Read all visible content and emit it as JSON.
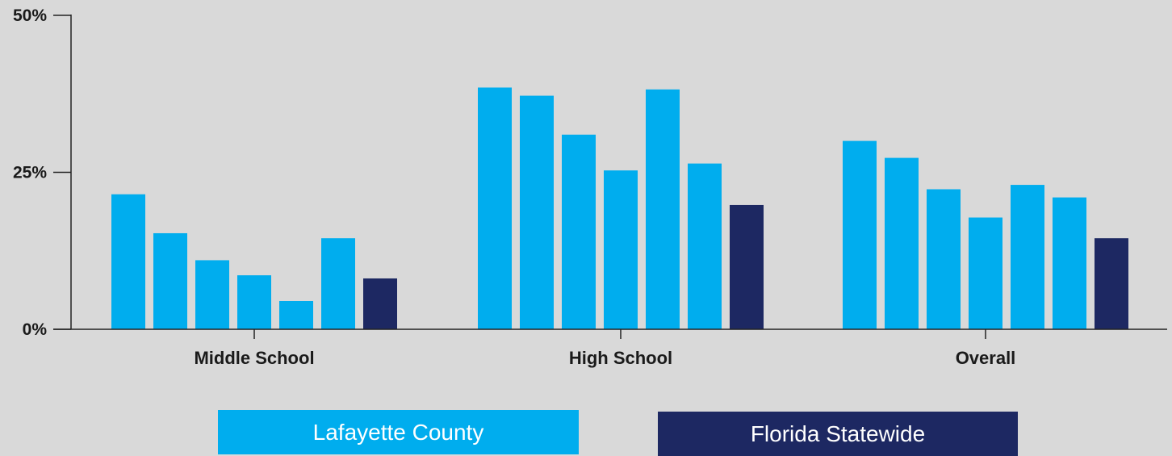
{
  "chart_data": {
    "type": "bar",
    "title": "",
    "xlabel": "",
    "ylabel": "",
    "categories": [
      "Middle School",
      "High School",
      "Overall"
    ],
    "ylim": [
      0,
      50
    ],
    "yticks": [
      {
        "value": 0,
        "label": "0%"
      },
      {
        "value": 25,
        "label": "25%"
      },
      {
        "value": 50,
        "label": "50%"
      }
    ],
    "grid": false,
    "legend_position": "bottom",
    "series": [
      {
        "color": "#00adee",
        "values": [
          21.5,
          38.5,
          30.0
        ]
      },
      {
        "color": "#00adee",
        "values": [
          15.3,
          37.2,
          27.3
        ]
      },
      {
        "color": "#00adee",
        "values": [
          11.0,
          31.0,
          22.3
        ]
      },
      {
        "color": "#00adee",
        "values": [
          8.6,
          25.3,
          17.8
        ]
      },
      {
        "color": "#00adee",
        "values": [
          4.5,
          38.2,
          23.0
        ]
      },
      {
        "color": "#00adee",
        "values": [
          14.5,
          26.4,
          21.0
        ]
      },
      {
        "name": "Florida Statewide",
        "color": "#1d2862",
        "values": [
          8.1,
          19.8,
          14.5
        ]
      }
    ]
  },
  "legend": [
    {
      "label": "Lafayette County",
      "color": "#00adee"
    },
    {
      "label": "Florida Statewide",
      "color": "#1d2862"
    }
  ]
}
